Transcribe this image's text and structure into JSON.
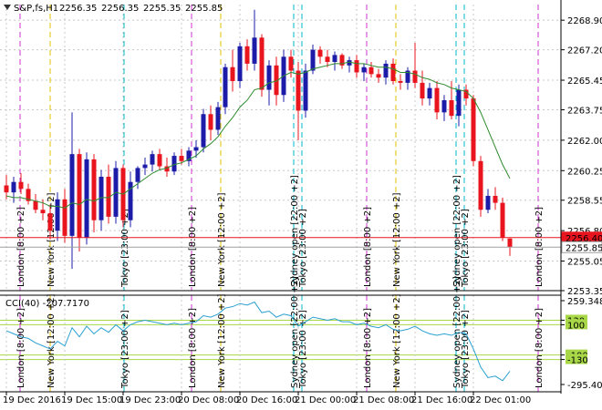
{
  "header": {
    "symbol": "S&P,fs,H1",
    "ohlc": [
      2256.35,
      2256.35,
      2255.35,
      2255.85
    ]
  },
  "chart_data": [
    {
      "type": "candlestick",
      "categories": [
        "19 Dec 2016",
        null,
        null,
        null,
        null,
        null,
        null,
        null,
        "19 Dec 15:00",
        null,
        null,
        null,
        null,
        null,
        null,
        null,
        "19 Dec 23:00",
        null,
        null,
        null,
        null,
        null,
        null,
        null,
        "20 Dec 08:00",
        null,
        null,
        null,
        null,
        null,
        null,
        null,
        "20 Dec 16:00",
        null,
        null,
        null,
        null,
        null,
        null,
        null,
        "21 Dec 00:00",
        null,
        null,
        null,
        null,
        null,
        null,
        null,
        "21 Dec 08:00",
        null,
        null,
        null,
        null,
        null,
        null,
        null,
        "21 Dec 16:00",
        null,
        null,
        null,
        null,
        null,
        null,
        null,
        "22 Dec 01:00",
        null,
        null,
        null,
        null,
        null
      ],
      "open": [
        2259.4,
        2259.0,
        2259.6,
        2259.2,
        2258.5,
        2258.0,
        2257.8,
        2256.8,
        2258.6,
        2256.5,
        2261.2,
        2256.4,
        2260.9,
        2257.4,
        2259.9,
        2257.6,
        2260.4,
        2257.4,
        2259.6,
        2260.4,
        2260.6,
        2261.2,
        2260.5,
        2260.2,
        2261.1,
        2260.8,
        2261.4,
        2261.6,
        2263.5,
        2262.6,
        2263.9,
        2266.2,
        2265.4,
        2267.4,
        2266.4,
        2267.9,
        2264.9,
        2266.3,
        2264.6,
        2266.8,
        2266.0,
        2263.7,
        2266.0,
        2267.2,
        2266.8,
        2266.5,
        2266.9,
        2266.3,
        2266.6,
        2265.9,
        2266.2,
        2265.8,
        2265.6,
        2266.4,
        2265.4,
        2265.3,
        2266.0,
        2265.3,
        2264.4,
        2265.0,
        2263.6,
        2264.3,
        2263.4,
        2264.9,
        2264.4,
        2260.8,
        2258.0,
        2258.8,
        2258.4,
        2256.35
      ],
      "high": [
        2260.0,
        2259.9,
        2260.1,
        2259.5,
        2258.9,
        2258.6,
        2258.3,
        2259.0,
        2259.2,
        2263.6,
        2261.5,
        2261.3,
        2261.2,
        2260.3,
        2260.6,
        2260.8,
        2260.6,
        2260.2,
        2260.5,
        2261.0,
        2261.4,
        2261.5,
        2261.0,
        2261.3,
        2261.5,
        2261.6,
        2262.0,
        2263.8,
        2264.0,
        2264.2,
        2266.4,
        2267.2,
        2267.6,
        2267.8,
        2269.5,
        2268.1,
        2266.6,
        2266.8,
        2267.2,
        2267.2,
        2266.5,
        2266.4,
        2267.5,
        2267.4,
        2267.2,
        2267.1,
        2267.0,
        2266.8,
        2266.9,
        2266.4,
        2266.5,
        2266.1,
        2266.6,
        2266.7,
        2265.8,
        2266.2,
        2267.6,
        2266.0,
        2265.3,
        2265.4,
        2264.6,
        2265.4,
        2265.2,
        2265.2,
        2264.6,
        2261.1,
        2259.2,
        2259.3,
        2258.7,
        2256.35
      ],
      "low": [
        2258.6,
        2258.4,
        2258.9,
        2258.3,
        2257.8,
        2257.4,
        2256.3,
        2256.2,
        2256.1,
        2254.6,
        2255.6,
        2256.0,
        2256.7,
        2256.8,
        2257.2,
        2257.2,
        2257.0,
        2257.0,
        2259.2,
        2260.0,
        2260.2,
        2260.3,
        2259.9,
        2260.0,
        2260.6,
        2260.5,
        2261.0,
        2261.3,
        2262.0,
        2262.3,
        2263.5,
        2264.8,
        2265.0,
        2266.0,
        2266.0,
        2264.5,
        2264.0,
        2264.0,
        2264.2,
        2265.6,
        2262.0,
        2263.3,
        2265.8,
        2266.4,
        2266.2,
        2266.0,
        2266.1,
        2265.9,
        2265.6,
        2265.4,
        2265.6,
        2265.3,
        2265.2,
        2265.2,
        2264.9,
        2264.9,
        2265.0,
        2264.0,
        2264.0,
        2263.2,
        2263.1,
        2263.2,
        2262.8,
        2264.0,
        2260.5,
        2257.6,
        2257.8,
        2258.0,
        2256.2,
        2255.35
      ],
      "close": [
        2259.0,
        2259.6,
        2259.2,
        2258.5,
        2258.0,
        2257.8,
        2256.8,
        2258.6,
        2256.5,
        2261.2,
        2256.4,
        2260.9,
        2257.4,
        2259.9,
        2257.6,
        2260.4,
        2257.4,
        2259.6,
        2260.4,
        2260.6,
        2261.2,
        2260.5,
        2260.2,
        2261.1,
        2260.8,
        2261.4,
        2261.6,
        2263.5,
        2262.6,
        2263.9,
        2266.2,
        2265.4,
        2267.4,
        2266.4,
        2267.9,
        2264.9,
        2266.3,
        2264.6,
        2266.8,
        2266.0,
        2263.7,
        2266.0,
        2267.2,
        2266.8,
        2266.5,
        2266.9,
        2266.3,
        2266.6,
        2265.9,
        2266.2,
        2265.8,
        2265.6,
        2266.4,
        2265.4,
        2265.3,
        2266.0,
        2265.3,
        2264.4,
        2265.0,
        2263.6,
        2264.3,
        2263.4,
        2264.9,
        2264.4,
        2260.8,
        2258.0,
        2258.8,
        2258.4,
        2256.4,
        2255.85
      ],
      "up_color": "#1c1ca8",
      "down_color": "#e8141e",
      "ma_color": "#2e8b2e",
      "ma_values": [
        2258.8,
        2258.7,
        2258.7,
        2258.6,
        2258.5,
        2258.4,
        2258.2,
        2258.2,
        2258.1,
        2258.4,
        2258.3,
        2258.6,
        2258.5,
        2258.7,
        2258.7,
        2259.0,
        2258.9,
        2259.2,
        2259.5,
        2259.8,
        2260.1,
        2260.3,
        2260.4,
        2260.6,
        2260.7,
        2260.9,
        2261.1,
        2261.5,
        2261.8,
        2262.2,
        2262.8,
        2263.3,
        2263.9,
        2264.3,
        2264.9,
        2265.0,
        2265.3,
        2265.4,
        2265.7,
        2265.9,
        2265.8,
        2265.9,
        2266.1,
        2266.2,
        2266.3,
        2266.4,
        2266.4,
        2266.5,
        2266.4,
        2266.4,
        2266.3,
        2266.2,
        2266.2,
        2266.1,
        2265.9,
        2265.9,
        2265.8,
        2265.6,
        2265.5,
        2265.3,
        2265.2,
        2265.0,
        2264.9,
        2264.8,
        2264.4,
        2263.6,
        2262.6,
        2261.6,
        2260.6,
        2259.8
      ],
      "ylim": [
        2253.35,
        2269.8
      ],
      "yticks": [
        {
          "value": 2268.9,
          "label": "2268.90"
        },
        {
          "value": 2267.2,
          "label": "2267.20"
        },
        2265.45,
        2263.75,
        {
          "value": 2262,
          "label": "2262.00"
        },
        2260.25,
        2258.55,
        {
          "value": 2256.8,
          "label": "2256.80"
        },
        2255.05,
        2253.35
      ],
      "price_lines": [
        {
          "value": 2256.4,
          "label": "2256.40",
          "color": "#e8141e"
        },
        {
          "value": 2255.85,
          "color": "#a0a0a0"
        }
      ],
      "grid": true,
      "sessions": [
        {
          "label": "London [8:00 +2]",
          "color": "#cc33cc"
        },
        {
          "label": "New York [12:00 +2]",
          "color": "#e0c000"
        },
        {
          "label": "Tokyo [23:00 +2]",
          "color": "#00b8c8"
        },
        {
          "label": "London [8:00 +2]",
          "color": "#cc33cc"
        },
        {
          "label": "New York [12:00 +2]",
          "color": "#e0c000"
        },
        {
          "label": "Sydney open [22:00 +2]",
          "color": "#00b8c8"
        },
        {
          "label": "Tokyo [23:00 +2]",
          "color": "#00b8c8"
        },
        {
          "label": "London [8:00 +2]",
          "color": "#cc33cc"
        },
        {
          "label": "New York [12:00 +2]",
          "color": "#e0c000"
        },
        {
          "label": "Sydney open [22:00 +2]",
          "color": "#00b8c8"
        },
        {
          "label": "Tokyo [23:00 +2]",
          "color": "#00b8c8"
        },
        {
          "label": "London [8:00 +2]",
          "color": "#cc33cc"
        }
      ]
    },
    {
      "type": "line",
      "title": "CCI(40) -207.7170",
      "color": "#2aa0d0",
      "values": [
        60,
        40,
        20,
        10,
        -20,
        -40,
        -60,
        -10,
        -40,
        80,
        20,
        90,
        40,
        80,
        50,
        100,
        60,
        100,
        120,
        130,
        120,
        110,
        100,
        110,
        100,
        110,
        120,
        160,
        150,
        170,
        210,
        220,
        240,
        230,
        250,
        180,
        190,
        150,
        170,
        160,
        90,
        120,
        150,
        140,
        130,
        140,
        120,
        120,
        100,
        110,
        90,
        80,
        100,
        70,
        60,
        70,
        90,
        60,
        40,
        30,
        40,
        30,
        50,
        40,
        -60,
        -180,
        -250,
        -240,
        -270,
        -207.717
      ],
      "ylim": [
        -295.4023,
        259.3482
      ],
      "yticks": [
        259.3482,
        130,
        100,
        -100,
        -130,
        -295.4023
      ],
      "levels": [
        130,
        100,
        -100,
        -130
      ],
      "level_color": "#a8d848"
    }
  ]
}
